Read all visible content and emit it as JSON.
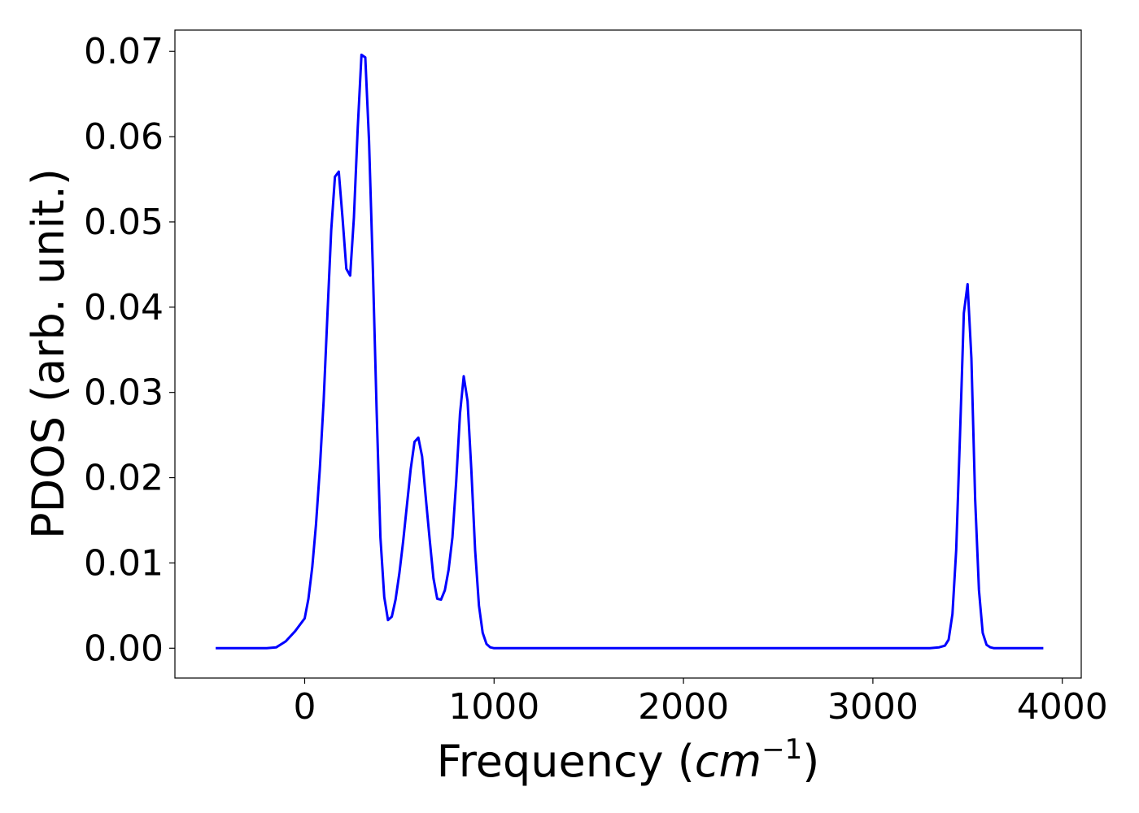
{
  "chart_data": {
    "type": "line",
    "xlabel_text": "Frequency (",
    "xlabel_math": "cm",
    "xlabel_exponent": "−1",
    "xlabel_close": ")",
    "ylabel": "PDOS (arb. unit.)",
    "xlim": [
      -685,
      4100
    ],
    "ylim": [
      -0.0035,
      0.0725
    ],
    "x_ticks": [
      0,
      1000,
      2000,
      3000,
      4000
    ],
    "x_tick_labels": [
      "0",
      "1000",
      "2000",
      "3000",
      "4000"
    ],
    "y_ticks": [
      0.0,
      0.01,
      0.02,
      0.03,
      0.04,
      0.05,
      0.06,
      0.07
    ],
    "y_tick_labels": [
      "0.00",
      "0.01",
      "0.02",
      "0.03",
      "0.04",
      "0.05",
      "0.06",
      "0.07"
    ],
    "grid": false,
    "legend": "none",
    "series": [
      {
        "color": "#0000ff",
        "x": [
          -470,
          -300,
          -200,
          -150,
          -100,
          -50,
          0,
          20,
          40,
          60,
          80,
          100,
          120,
          140,
          160,
          180,
          200,
          220,
          240,
          260,
          280,
          300,
          320,
          340,
          360,
          380,
          400,
          420,
          440,
          460,
          480,
          500,
          520,
          540,
          560,
          580,
          600,
          620,
          640,
          660,
          680,
          700,
          720,
          740,
          760,
          780,
          800,
          820,
          840,
          860,
          880,
          900,
          920,
          940,
          960,
          980,
          1000,
          1020,
          1040,
          1060,
          1100,
          1200,
          1500,
          2000,
          2500,
          3000,
          3300,
          3350,
          3380,
          3400,
          3420,
          3440,
          3460,
          3480,
          3500,
          3520,
          3540,
          3560,
          3580,
          3600,
          3620,
          3640,
          3660,
          3700,
          3900
        ],
        "y": [
          0.0,
          0.0,
          0.0,
          0.0001,
          0.0008,
          0.002,
          0.0035,
          0.0058,
          0.0095,
          0.0145,
          0.021,
          0.029,
          0.039,
          0.049,
          0.0553,
          0.0559,
          0.0505,
          0.0445,
          0.0437,
          0.0505,
          0.061,
          0.0696,
          0.0693,
          0.0595,
          0.0445,
          0.028,
          0.013,
          0.006,
          0.0033,
          0.0037,
          0.0057,
          0.0088,
          0.0125,
          0.0168,
          0.021,
          0.0242,
          0.0247,
          0.0225,
          0.0175,
          0.0128,
          0.0082,
          0.0058,
          0.0057,
          0.0068,
          0.0092,
          0.013,
          0.0195,
          0.0275,
          0.0319,
          0.029,
          0.021,
          0.0115,
          0.005,
          0.0018,
          0.0005,
          0.0001,
          0.0,
          0.0,
          0.0,
          0.0,
          0.0,
          0.0,
          0.0,
          0.0,
          0.0,
          0.0,
          0.0,
          0.0001,
          0.0003,
          0.001,
          0.004,
          0.0115,
          0.025,
          0.0393,
          0.0427,
          0.034,
          0.0175,
          0.0068,
          0.0018,
          0.0004,
          0.0001,
          0.0,
          0.0,
          0.0,
          0.0
        ]
      }
    ]
  }
}
